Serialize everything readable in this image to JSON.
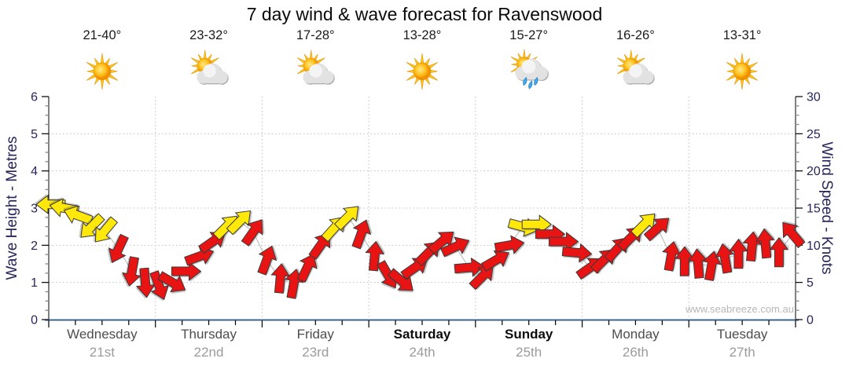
{
  "title": "7 day wind & wave forecast for Ravenswood",
  "watermark": "www.seabreeze.com.au",
  "days": [
    {
      "name": "Wednesday",
      "date": "21st",
      "temp_range": "21-40°",
      "icon": "sunny",
      "weekend": false
    },
    {
      "name": "Thursday",
      "date": "22nd",
      "temp_range": "23-32°",
      "icon": "partly-cloudy",
      "weekend": false
    },
    {
      "name": "Friday",
      "date": "23rd",
      "temp_range": "17-28°",
      "icon": "partly-cloudy",
      "weekend": false
    },
    {
      "name": "Saturday",
      "date": "24th",
      "temp_range": "13-28°",
      "icon": "sunny",
      "weekend": true
    },
    {
      "name": "Sunday",
      "date": "25th",
      "temp_range": "15-27°",
      "icon": "showers",
      "weekend": true
    },
    {
      "name": "Monday",
      "date": "26th",
      "temp_range": "16-26°",
      "icon": "partly-cloudy",
      "weekend": false
    },
    {
      "name": "Tuesday",
      "date": "27th",
      "temp_range": "13-31°",
      "icon": "sunny",
      "weekend": false
    }
  ],
  "left_axis": {
    "label": "Wave Height - Metres",
    "ticks": [
      0,
      1,
      2,
      3,
      4,
      5,
      6
    ],
    "min": 0,
    "max": 6
  },
  "right_axis": {
    "label": "Wind Speed - Knots",
    "ticks": [
      0,
      5,
      10,
      15,
      20,
      25,
      30
    ],
    "min": 0,
    "max": 30
  },
  "colors": {
    "arrow_red": "#e81414",
    "arrow_yellow": "#ffe80a",
    "arrow_outline": "#3a3a3a",
    "axis_text": "#26265c",
    "temp_text": "#1b1b1b",
    "bottom_axis": "#3a648c",
    "side_axis": "#000000",
    "grid": "#c0c0c0",
    "trace_line": "#b4b4b4",
    "day_label": "#4d4d4d",
    "weekend_label": "#0d0d0d",
    "date_label": "#9b9b9b",
    "watermark": "#b7b7b7"
  },
  "chart_data": {
    "type": "scatter",
    "marker": "directional wind arrows",
    "title": "7 day wind & wave forecast for Ravenswood",
    "categories": [
      "Wednesday 21st",
      "Thursday 22nd",
      "Friday 23rd",
      "Saturday 24th",
      "Sunday 25th",
      "Monday 26th",
      "Tuesday 27th"
    ],
    "points_per_day": 8,
    "interval_hours": 3,
    "ylabel_left": "Wave Height - Metres",
    "ylim_left": [
      0,
      6
    ],
    "ylabel_right": "Wind Speed - Knots",
    "ylim_right": [
      0,
      30
    ],
    "grid": "dotted horizontal every 5 knots (1 m), dotted vertical at day boundaries",
    "legend": "none",
    "arrow_color_rule": "yellow = stronger wind (about 12+ knots), red = lighter wind",
    "series": [
      {
        "name": "Wind speed & direction (same points read as wave height: metres = knots / 5)",
        "knots": [
          15.5,
          15,
          14,
          12.5,
          12,
          9.5,
          6.5,
          5,
          4.6,
          5,
          6.5,
          8.5,
          10.5,
          12.5,
          13.2,
          11.8,
          8,
          5.5,
          4.8,
          7,
          10,
          12.3,
          13.8,
          11.5,
          8.5,
          6,
          5.2,
          7,
          9,
          10.5,
          9.8,
          7,
          5.8,
          8,
          10,
          12.5,
          12.8,
          11.5,
          10.5,
          9,
          7,
          8,
          9.5,
          11,
          12.8,
          12.3,
          8.5,
          7.8,
          7.5,
          7.2,
          8.2,
          8.8,
          9.8,
          10.2,
          9,
          11.5
        ],
        "direction_deg_screen": [
          180,
          190,
          200,
          135,
          130,
          115,
          100,
          85,
          70,
          30,
          0,
          -20,
          -35,
          -45,
          -45,
          -55,
          -70,
          -85,
          -80,
          -65,
          -55,
          -48,
          -45,
          -70,
          -85,
          60,
          40,
          -35,
          -45,
          -40,
          -25,
          -5,
          -45,
          -30,
          -10,
          15,
          0,
          0,
          0,
          5,
          -35,
          -45,
          -48,
          -45,
          -45,
          -42,
          -80,
          -90,
          -95,
          -80,
          -100,
          -90,
          -85,
          -95,
          -90,
          -130
        ],
        "strong_wind": [
          1,
          1,
          1,
          1,
          1,
          0,
          0,
          0,
          0,
          0,
          0,
          0,
          0,
          1,
          1,
          0,
          0,
          0,
          0,
          0,
          0,
          1,
          1,
          0,
          0,
          0,
          0,
          0,
          0,
          0,
          0,
          0,
          0,
          0,
          0,
          1,
          1,
          0,
          0,
          0,
          0,
          0,
          0,
          0,
          1,
          0,
          0,
          0,
          0,
          0,
          0,
          0,
          0,
          0,
          0,
          0
        ]
      }
    ]
  }
}
